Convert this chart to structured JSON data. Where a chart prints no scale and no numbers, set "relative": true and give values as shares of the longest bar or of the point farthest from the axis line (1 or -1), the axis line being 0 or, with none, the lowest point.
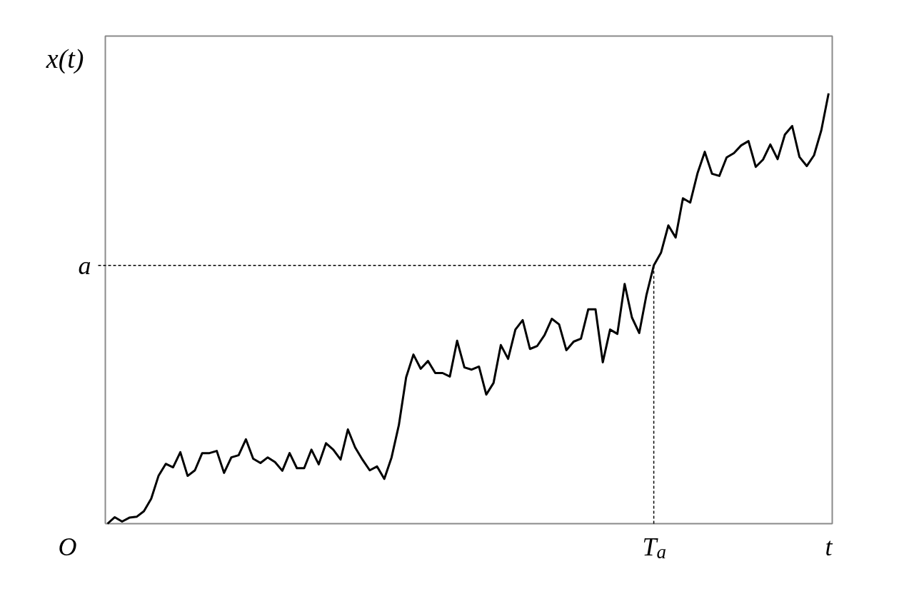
{
  "chart_data": {
    "type": "line",
    "relative": true,
    "xlabel": "t",
    "ylabel": "x(t)",
    "annotations": [
      "O"
    ],
    "categories": [
      null,
      null,
      null,
      null,
      null,
      null,
      null,
      null,
      null,
      null,
      null,
      null,
      null,
      null,
      null,
      null,
      null,
      null,
      null,
      null,
      null,
      null,
      null,
      null,
      null,
      null,
      null,
      null,
      null,
      null,
      null,
      null,
      null,
      null,
      null,
      null,
      null,
      null,
      null,
      null,
      null,
      null,
      null,
      null,
      null,
      null,
      null,
      null,
      null,
      null,
      null,
      null,
      null,
      null,
      null,
      null,
      null,
      null,
      null,
      null,
      null,
      null,
      null,
      null,
      null,
      null,
      null,
      null,
      null,
      null,
      null,
      null,
      null,
      null,
      null,
      null,
      null,
      null,
      null,
      null,
      null,
      null,
      null,
      null,
      null,
      null,
      null,
      null,
      null,
      null,
      null,
      null,
      null,
      null,
      null,
      null,
      null,
      null,
      null,
      null
    ],
    "series": [
      {
        "color": "#000000",
        "values": [
          0,
          0.015,
          0.005,
          0.014,
          0.016,
          0.029,
          0.058,
          0.111,
          0.139,
          0.131,
          0.166,
          0.111,
          0.124,
          0.164,
          0.164,
          0.169,
          0.118,
          0.154,
          0.159,
          0.196,
          0.151,
          0.141,
          0.154,
          0.143,
          0.123,
          0.164,
          0.129,
          0.129,
          0.172,
          0.138,
          0.187,
          0.172,
          0.149,
          0.219,
          0.177,
          0.149,
          0.124,
          0.133,
          0.104,
          0.154,
          0.229,
          0.34,
          0.393,
          0.36,
          0.378,
          0.35,
          0.35,
          0.342,
          0.425,
          0.363,
          0.358,
          0.365,
          0.3,
          0.327,
          0.415,
          0.383,
          0.451,
          0.473,
          0.406,
          0.413,
          0.438,
          0.476,
          0.463,
          0.403,
          0.423,
          0.43,
          0.498,
          0.498,
          0.375,
          0.451,
          0.441,
          0.557,
          0.479,
          0.443,
          0.532,
          0.6,
          0.63,
          0.693,
          0.665,
          0.756,
          0.746,
          0.814,
          0.864,
          0.813,
          0.808,
          0.851,
          0.861,
          0.879,
          0.889,
          0.829,
          0.846,
          0.881,
          0.847,
          0.904,
          0.924,
          0.852,
          0.831,
          0.856,
          0.914,
          1
        ]
      }
    ],
    "ref_lines": [
      {
        "axis": "y",
        "value": 0.6,
        "label": "a",
        "line_style": "dashed",
        "color": "#000000"
      },
      {
        "axis": "x",
        "label": "T$_{a}$",
        "line_style": "dashed",
        "color": "#000000"
      }
    ],
    "grid": false
  }
}
